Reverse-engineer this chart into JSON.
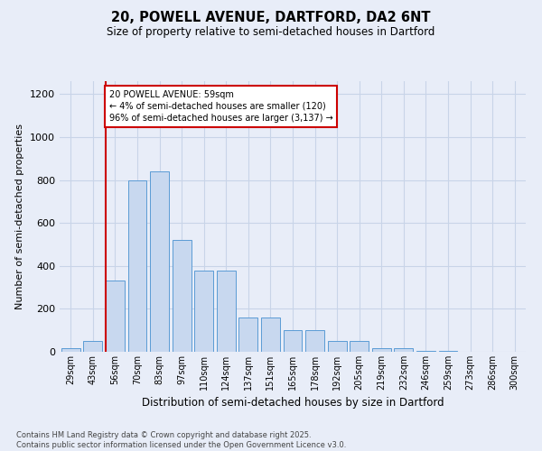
{
  "title_line1": "20, POWELL AVENUE, DARTFORD, DA2 6NT",
  "title_line2": "Size of property relative to semi-detached houses in Dartford",
  "xlabel": "Distribution of semi-detached houses by size in Dartford",
  "ylabel": "Number of semi-detached properties",
  "footnote": "Contains HM Land Registry data © Crown copyright and database right 2025.\nContains public sector information licensed under the Open Government Licence v3.0.",
  "bin_labels": [
    "29sqm",
    "43sqm",
    "56sqm",
    "70sqm",
    "83sqm",
    "97sqm",
    "110sqm",
    "124sqm",
    "137sqm",
    "151sqm",
    "165sqm",
    "178sqm",
    "192sqm",
    "205sqm",
    "219sqm",
    "232sqm",
    "246sqm",
    "259sqm",
    "273sqm",
    "286sqm",
    "300sqm"
  ],
  "bar_values": [
    15,
    50,
    330,
    800,
    840,
    520,
    380,
    380,
    160,
    160,
    100,
    100,
    50,
    50,
    15,
    15,
    5,
    5,
    2,
    1,
    0
  ],
  "bar_color": "#c8d8ef",
  "bar_edge_color": "#5b9bd5",
  "grid_color": "#c8d4e8",
  "background_color": "#e8edf8",
  "subject_line_color": "#cc0000",
  "annotation_text": "20 POWELL AVENUE: 59sqm\n← 4% of semi-detached houses are smaller (120)\n96% of semi-detached houses are larger (3,137) →",
  "annotation_box_color": "#cc0000",
  "ylim": [
    0,
    1260
  ],
  "yticks": [
    0,
    200,
    400,
    600,
    800,
    1000,
    1200
  ],
  "subject_bin_index": 2,
  "bar_width": 0.85
}
